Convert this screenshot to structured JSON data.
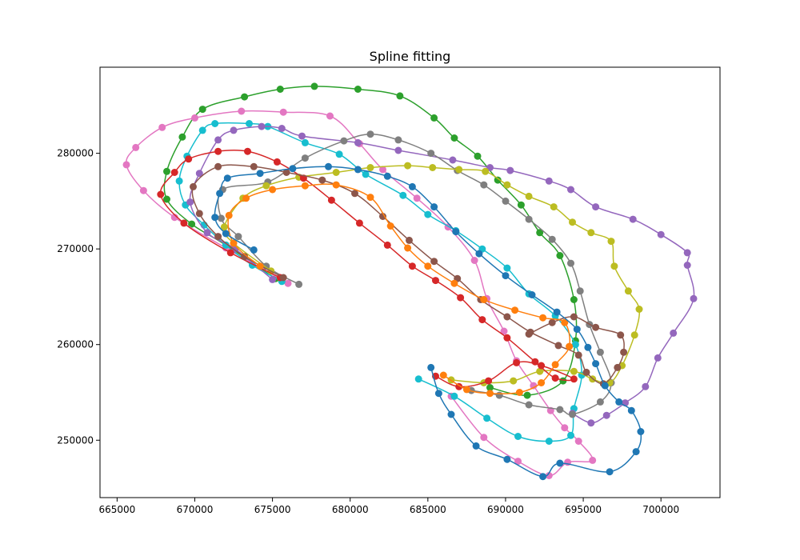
{
  "chart_data": {
    "type": "line",
    "title": "Spline fitting",
    "xlabel": "",
    "ylabel": "",
    "xlim": [
      663900,
      703800
    ],
    "ylim": [
      244000,
      289000
    ],
    "x_ticks": [
      665000,
      670000,
      675000,
      680000,
      685000,
      690000,
      695000,
      700000
    ],
    "y_ticks": [
      250000,
      260000,
      270000,
      280000
    ],
    "grid": false,
    "legend": "none",
    "markers": true,
    "colors": [
      "#1f77b4",
      "#ff7f0e",
      "#2ca02c",
      "#d62728",
      "#9467bd",
      "#8c564b",
      "#e377c2",
      "#7f7f7f",
      "#bcbd22",
      "#17becf"
    ],
    "series": [
      {
        "color": "#2ca02c",
        "points": [
          [
            675200,
            266900
          ],
          [
            672000,
            270400
          ],
          [
            669800,
            272600
          ],
          [
            668200,
            275200
          ],
          [
            668200,
            278100
          ],
          [
            669200,
            281700
          ],
          [
            670500,
            284600
          ],
          [
            673200,
            285900
          ],
          [
            675500,
            286700
          ],
          [
            677700,
            287000
          ],
          [
            680500,
            286700
          ],
          [
            683200,
            286000
          ],
          [
            685400,
            283700
          ],
          [
            686700,
            281600
          ],
          [
            688200,
            279700
          ],
          [
            689500,
            277200
          ],
          [
            691000,
            274600
          ],
          [
            692200,
            271700
          ],
          [
            693500,
            269300
          ],
          [
            694400,
            264700
          ],
          [
            694500,
            260400
          ],
          [
            693700,
            256200
          ],
          [
            691400,
            254700
          ],
          [
            689000,
            255500
          ]
        ]
      },
      {
        "color": "#e377c2",
        "points": [
          [
            676000,
            266400
          ],
          [
            672000,
            270100
          ],
          [
            668700,
            273300
          ],
          [
            666700,
            276100
          ],
          [
            665600,
            278800
          ],
          [
            666200,
            280600
          ],
          [
            667900,
            282700
          ],
          [
            670000,
            283700
          ],
          [
            673000,
            284400
          ],
          [
            675700,
            284300
          ],
          [
            678700,
            283900
          ],
          [
            680600,
            281000
          ],
          [
            682100,
            278300
          ],
          [
            684300,
            275300
          ],
          [
            686300,
            272300
          ],
          [
            688000,
            268800
          ],
          [
            688800,
            264800
          ],
          [
            689900,
            261400
          ],
          [
            690700,
            258300
          ],
          [
            691800,
            255700
          ],
          [
            692900,
            253100
          ],
          [
            693800,
            251300
          ],
          [
            694700,
            249900
          ],
          [
            695600,
            247900
          ],
          [
            694000,
            247700
          ],
          [
            692800,
            246300
          ],
          [
            690800,
            247800
          ],
          [
            688600,
            250300
          ],
          [
            686500,
            254600
          ]
        ]
      },
      {
        "color": "#17becf",
        "points": [
          [
            675600,
            266600
          ],
          [
            673700,
            268300
          ],
          [
            672000,
            270400
          ],
          [
            670600,
            272500
          ],
          [
            669400,
            274600
          ],
          [
            669000,
            277100
          ],
          [
            669500,
            279700
          ],
          [
            670500,
            282400
          ],
          [
            671300,
            283100
          ],
          [
            673500,
            283100
          ],
          [
            674700,
            282800
          ],
          [
            677100,
            281100
          ],
          [
            679300,
            279900
          ],
          [
            681000,
            277800
          ],
          [
            683400,
            275600
          ],
          [
            685000,
            273600
          ],
          [
            686800,
            271900
          ],
          [
            688500,
            270000
          ],
          [
            690100,
            268000
          ],
          [
            691500,
            265300
          ],
          [
            693200,
            263000
          ],
          [
            694500,
            260000
          ],
          [
            694900,
            256800
          ],
          [
            694400,
            253300
          ],
          [
            694200,
            250500
          ],
          [
            692800,
            249900
          ],
          [
            690800,
            250400
          ],
          [
            688800,
            252300
          ],
          [
            686700,
            254600
          ],
          [
            684400,
            256400
          ]
        ]
      },
      {
        "color": "#9467bd",
        "points": [
          [
            675000,
            266800
          ],
          [
            672600,
            270000
          ],
          [
            670800,
            271700
          ],
          [
            669700,
            274900
          ],
          [
            670300,
            277900
          ],
          [
            671500,
            281400
          ],
          [
            672500,
            282400
          ],
          [
            674300,
            282800
          ],
          [
            675600,
            282600
          ],
          [
            676900,
            281800
          ],
          [
            680500,
            281100
          ],
          [
            683100,
            280300
          ],
          [
            686600,
            279300
          ],
          [
            689000,
            278500
          ],
          [
            690300,
            278200
          ],
          [
            692800,
            277100
          ],
          [
            694200,
            276200
          ],
          [
            695800,
            274400
          ],
          [
            698200,
            273100
          ],
          [
            700000,
            271500
          ],
          [
            701700,
            269600
          ],
          [
            701700,
            268300
          ],
          [
            702100,
            264800
          ],
          [
            700800,
            261200
          ],
          [
            699800,
            258600
          ],
          [
            699000,
            255600
          ],
          [
            697700,
            253900
          ],
          [
            696500,
            252600
          ],
          [
            695500,
            251800
          ],
          [
            694300,
            252800
          ]
        ]
      },
      {
        "color": "#7f7f7f",
        "points": [
          [
            676700,
            266300
          ],
          [
            674600,
            268200
          ],
          [
            672800,
            271300
          ],
          [
            671700,
            273200
          ],
          [
            671800,
            276200
          ],
          [
            674700,
            277000
          ],
          [
            677100,
            279500
          ],
          [
            679600,
            281300
          ],
          [
            681300,
            282000
          ],
          [
            683100,
            281400
          ],
          [
            685200,
            280000
          ],
          [
            686900,
            278200
          ],
          [
            688600,
            276700
          ],
          [
            690000,
            275000
          ],
          [
            691500,
            273100
          ],
          [
            693000,
            271000
          ],
          [
            694200,
            268500
          ],
          [
            694800,
            265600
          ],
          [
            695400,
            262100
          ],
          [
            696100,
            259200
          ],
          [
            696800,
            256000
          ],
          [
            696100,
            254000
          ],
          [
            694300,
            252700
          ],
          [
            693500,
            253200
          ],
          [
            691500,
            253700
          ],
          [
            689600,
            254700
          ],
          [
            687800,
            255200
          ]
        ]
      },
      {
        "color": "#bcbd22",
        "points": [
          [
            674900,
            267700
          ],
          [
            672500,
            270600
          ],
          [
            671900,
            272300
          ],
          [
            673100,
            275300
          ],
          [
            674600,
            276600
          ],
          [
            676700,
            277500
          ],
          [
            679100,
            278000
          ],
          [
            681300,
            278500
          ],
          [
            683700,
            278700
          ],
          [
            685300,
            278500
          ],
          [
            687000,
            278300
          ],
          [
            688700,
            278100
          ],
          [
            690100,
            276700
          ],
          [
            691500,
            275500
          ],
          [
            693100,
            274400
          ],
          [
            694300,
            272800
          ],
          [
            695500,
            271700
          ],
          [
            696800,
            270800
          ],
          [
            697000,
            268200
          ],
          [
            697900,
            265600
          ],
          [
            698600,
            263700
          ],
          [
            698300,
            261000
          ],
          [
            697500,
            257800
          ],
          [
            696700,
            256000
          ],
          [
            695600,
            256400
          ],
          [
            694400,
            257200
          ],
          [
            692200,
            257200
          ],
          [
            690500,
            256200
          ],
          [
            688600,
            256000
          ],
          [
            686500,
            256300
          ]
        ]
      },
      {
        "color": "#d62728",
        "points": [
          [
            675500,
            267000
          ],
          [
            672300,
            269600
          ],
          [
            669300,
            272700
          ],
          [
            667800,
            275700
          ],
          [
            668700,
            278000
          ],
          [
            669600,
            279400
          ],
          [
            671500,
            280200
          ],
          [
            673400,
            280200
          ],
          [
            675300,
            279100
          ],
          [
            677000,
            277400
          ],
          [
            678800,
            275100
          ],
          [
            680600,
            272700
          ],
          [
            682400,
            270400
          ],
          [
            684000,
            268200
          ],
          [
            685500,
            266700
          ],
          [
            687100,
            264900
          ],
          [
            688500,
            262600
          ],
          [
            690100,
            260700
          ],
          [
            691900,
            258200
          ],
          [
            693200,
            256500
          ],
          [
            694400,
            256400
          ],
          [
            692300,
            257800
          ],
          [
            690700,
            258100
          ],
          [
            688900,
            256200
          ],
          [
            687000,
            255600
          ],
          [
            685500,
            256700
          ]
        ]
      },
      {
        "color": "#8c564b",
        "points": [
          [
            675700,
            267000
          ],
          [
            673200,
            269200
          ],
          [
            671500,
            271300
          ],
          [
            670300,
            273700
          ],
          [
            669900,
            276500
          ],
          [
            671500,
            278600
          ],
          [
            673800,
            278600
          ],
          [
            675900,
            278000
          ],
          [
            678200,
            277200
          ],
          [
            680300,
            275800
          ],
          [
            682100,
            273400
          ],
          [
            683800,
            270900
          ],
          [
            685400,
            268700
          ],
          [
            686900,
            266900
          ],
          [
            688400,
            264700
          ],
          [
            690100,
            262900
          ],
          [
            691600,
            261300
          ],
          [
            693400,
            259900
          ],
          [
            694700,
            258900
          ],
          [
            695200,
            257100
          ],
          [
            696300,
            255900
          ],
          [
            697200,
            257600
          ],
          [
            697600,
            259200
          ],
          [
            697400,
            261000
          ],
          [
            695800,
            261800
          ],
          [
            694400,
            262900
          ],
          [
            693000,
            262300
          ],
          [
            691500,
            261100
          ]
        ]
      },
      {
        "color": "#ff7f0e",
        "points": [
          [
            674200,
            268200
          ],
          [
            672500,
            270600
          ],
          [
            672200,
            273500
          ],
          [
            673300,
            275300
          ],
          [
            675000,
            276200
          ],
          [
            677100,
            276600
          ],
          [
            679100,
            276700
          ],
          [
            681300,
            275400
          ],
          [
            682600,
            272400
          ],
          [
            683700,
            270100
          ],
          [
            685000,
            268200
          ],
          [
            686700,
            266400
          ],
          [
            688600,
            264700
          ],
          [
            690600,
            263600
          ],
          [
            692400,
            262800
          ],
          [
            693800,
            262300
          ],
          [
            694100,
            259800
          ],
          [
            693200,
            257900
          ],
          [
            692300,
            256000
          ],
          [
            690900,
            255000
          ],
          [
            689000,
            254900
          ],
          [
            687500,
            255300
          ],
          [
            686000,
            256800
          ]
        ]
      },
      {
        "color": "#1f77b4",
        "points": [
          [
            673800,
            269900
          ],
          [
            672000,
            271600
          ],
          [
            671300,
            273300
          ],
          [
            671600,
            275800
          ],
          [
            672100,
            277400
          ],
          [
            674200,
            277900
          ],
          [
            676300,
            278400
          ],
          [
            678600,
            278600
          ],
          [
            680500,
            278300
          ],
          [
            682400,
            277600
          ],
          [
            684000,
            276500
          ],
          [
            685400,
            274400
          ],
          [
            686800,
            271800
          ],
          [
            688300,
            269500
          ],
          [
            690000,
            267200
          ],
          [
            691700,
            265200
          ],
          [
            693300,
            263400
          ],
          [
            694600,
            261600
          ],
          [
            695300,
            259700
          ],
          [
            695800,
            258000
          ],
          [
            696400,
            255700
          ],
          [
            697300,
            254000
          ],
          [
            698100,
            253100
          ],
          [
            698700,
            250900
          ],
          [
            698400,
            248800
          ],
          [
            696700,
            246700
          ],
          [
            693500,
            247600
          ],
          [
            692400,
            246200
          ],
          [
            690100,
            248000
          ],
          [
            688100,
            249400
          ],
          [
            686500,
            252700
          ],
          [
            685700,
            254900
          ],
          [
            685200,
            257600
          ]
        ]
      }
    ]
  }
}
